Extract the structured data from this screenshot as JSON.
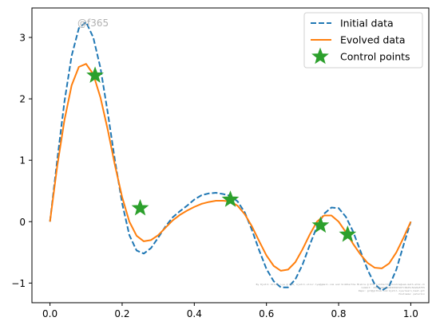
{
  "chart_data": {
    "type": "line",
    "title": "",
    "xlabel": "",
    "ylabel": "",
    "xlim": [
      -0.05,
      1.05
    ],
    "ylim": [
      -1.32,
      3.48
    ],
    "xticks": [
      0.0,
      0.2,
      0.4,
      0.6,
      0.8,
      1.0
    ],
    "xtick_labels": [
      "0.0",
      "0.2",
      "0.4",
      "0.6",
      "0.8",
      "1.0"
    ],
    "yticks": [
      -1,
      0,
      1,
      2,
      3
    ],
    "ytick_labels": [
      "−1",
      "0",
      "1",
      "2",
      "3"
    ],
    "grid": false,
    "legend_position": "top-right",
    "watermark": "@f365",
    "credit_text": [
      "By Kjetil Oliver Lye @ ETH, kjetil.olivr.lye@gmail.com and Siddhartha Mishra @ ETH siddhartha.mishra@sam.math.ethz.ch",
      "Commit: 18311e0ad5e64569b516fc04d5c5da0e5f55",
      "Repo: git@github.com:kjetil-lye/learn_heat.git",
      "Hostname: peterkin"
    ],
    "series": [
      {
        "name": "Initial data",
        "style": "dashed",
        "color": "#1f77b4",
        "x": [
          0.0,
          0.02,
          0.04,
          0.06,
          0.08,
          0.1,
          0.12,
          0.14,
          0.16,
          0.18,
          0.2,
          0.22,
          0.24,
          0.26,
          0.28,
          0.3,
          0.32,
          0.34,
          0.36,
          0.38,
          0.4,
          0.42,
          0.44,
          0.46,
          0.48,
          0.5,
          0.52,
          0.54,
          0.56,
          0.58,
          0.6,
          0.62,
          0.64,
          0.66,
          0.68,
          0.7,
          0.72,
          0.74,
          0.76,
          0.78,
          0.8,
          0.82,
          0.84,
          0.86,
          0.88,
          0.9,
          0.92,
          0.94,
          0.96,
          0.98,
          1.0
        ],
        "y": [
          0.0,
          1.0,
          1.95,
          2.7,
          3.15,
          3.25,
          3.0,
          2.5,
          1.78,
          1.0,
          0.3,
          -0.22,
          -0.47,
          -0.52,
          -0.43,
          -0.26,
          -0.08,
          0.07,
          0.17,
          0.26,
          0.36,
          0.43,
          0.46,
          0.47,
          0.45,
          0.42,
          0.33,
          0.15,
          -0.14,
          -0.47,
          -0.77,
          -0.97,
          -1.07,
          -1.07,
          -0.94,
          -0.7,
          -0.38,
          -0.08,
          0.13,
          0.23,
          0.22,
          0.08,
          -0.16,
          -0.47,
          -0.78,
          -1.02,
          -1.12,
          -1.05,
          -0.78,
          -0.38,
          0.0
        ]
      },
      {
        "name": "Evolved data",
        "style": "solid",
        "color": "#ff7f0e",
        "x": [
          0.0,
          0.02,
          0.04,
          0.06,
          0.08,
          0.1,
          0.12,
          0.14,
          0.16,
          0.18,
          0.2,
          0.22,
          0.24,
          0.26,
          0.28,
          0.3,
          0.32,
          0.34,
          0.36,
          0.38,
          0.4,
          0.42,
          0.44,
          0.46,
          0.48,
          0.5,
          0.52,
          0.54,
          0.56,
          0.58,
          0.6,
          0.62,
          0.64,
          0.66,
          0.68,
          0.7,
          0.72,
          0.74,
          0.76,
          0.78,
          0.8,
          0.82,
          0.84,
          0.86,
          0.88,
          0.9,
          0.92,
          0.94,
          0.96,
          0.98,
          1.0
        ],
        "y": [
          0.0,
          0.9,
          1.65,
          2.22,
          2.52,
          2.57,
          2.4,
          2.02,
          1.5,
          0.92,
          0.4,
          0.0,
          -0.23,
          -0.32,
          -0.3,
          -0.22,
          -0.1,
          0.02,
          0.11,
          0.18,
          0.24,
          0.29,
          0.32,
          0.34,
          0.34,
          0.33,
          0.26,
          0.12,
          -0.08,
          -0.32,
          -0.55,
          -0.72,
          -0.8,
          -0.78,
          -0.66,
          -0.45,
          -0.21,
          0.0,
          0.1,
          0.1,
          0.0,
          -0.17,
          -0.36,
          -0.53,
          -0.67,
          -0.75,
          -0.76,
          -0.68,
          -0.5,
          -0.26,
          0.0
        ]
      },
      {
        "name": "Control points",
        "style": "marker-star",
        "color": "#2ca02c",
        "x": [
          0.125,
          0.25,
          0.5,
          0.75,
          0.825
        ],
        "y": [
          2.38,
          0.22,
          0.36,
          -0.06,
          -0.21
        ]
      }
    ]
  }
}
